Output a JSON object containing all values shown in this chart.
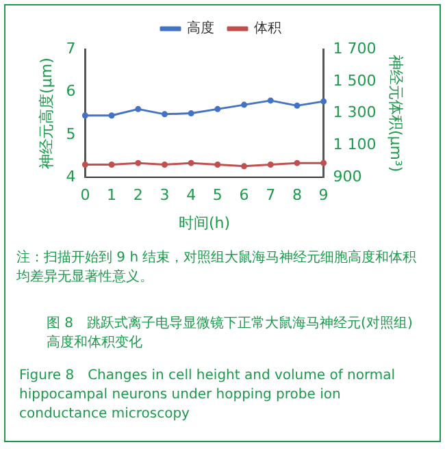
{
  "chart_data": {
    "type": "line",
    "categories": [
      "0",
      "1",
      "2",
      "3",
      "4",
      "5",
      "6",
      "7",
      "8",
      "9"
    ],
    "xlabel": "时间(h)",
    "ylabel": "神经元高度(μm)",
    "y2label": "神经元体积(μm³)",
    "ylim": [
      4,
      7
    ],
    "yticks": [
      4,
      5,
      6,
      7
    ],
    "y2lim": [
      900,
      1700
    ],
    "y2ticks": [
      {
        "value": 900,
        "label": "900"
      },
      {
        "value": 1100,
        "label": "1 100"
      },
      {
        "value": 1300,
        "label": "1 300"
      },
      {
        "value": 1500,
        "label": "1 500"
      },
      {
        "value": 1700,
        "label": "1 700"
      }
    ],
    "marker": "circle",
    "legend": "top",
    "grid": false,
    "series": [
      {
        "name": "高度",
        "color": "#4472c4",
        "values": [
          5.45,
          5.45,
          5.6,
          5.48,
          5.5,
          5.6,
          5.7,
          5.8,
          5.68,
          5.78
        ]
      },
      {
        "name": "体积",
        "color": "#c0504d",
        "axis": "y2",
        "values": [
          980,
          980,
          990,
          980,
          990,
          980,
          970,
          980,
          990,
          990
        ]
      }
    ],
    "annotations": [
      "注：扫描开始到 9 h 结束，对照组大鼠海马神经元细胞高度和体积均差异无显著性意义。",
      "图 8　跳跃式离子电导显微镜下正常大鼠海马神经元(对照组)高度和体积变化",
      "Figure 8　Changes in cell height and volume of normal hippocampal neurons under hopping probe ion conductance microscopy"
    ]
  }
}
